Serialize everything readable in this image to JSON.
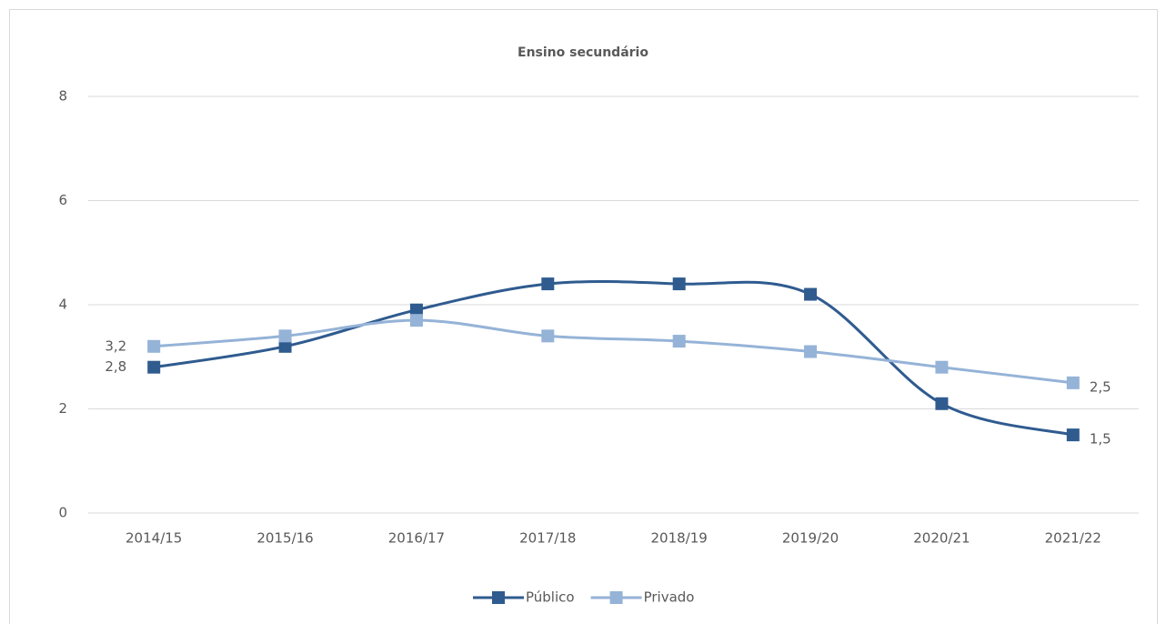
{
  "chart_data": {
    "type": "line",
    "title": "Ensino secundário",
    "categories": [
      "2014/15",
      "2015/16",
      "2016/17",
      "2017/18",
      "2018/19",
      "2019/20",
      "2020/21",
      "2021/22"
    ],
    "series": [
      {
        "name": "Público",
        "color": "#2f5b8f",
        "values": [
          2.8,
          3.2,
          3.9,
          4.4,
          4.4,
          4.2,
          2.1,
          1.5
        ],
        "value_labels": [
          "2,8",
          null,
          null,
          null,
          null,
          null,
          null,
          "1,5"
        ]
      },
      {
        "name": "Privado",
        "color": "#95b3d7",
        "values": [
          3.2,
          3.4,
          3.7,
          3.4,
          3.3,
          3.1,
          2.8,
          2.5
        ],
        "value_labels": [
          "3,2",
          null,
          null,
          null,
          null,
          null,
          null,
          "2,5"
        ]
      }
    ],
    "ylim": [
      0,
      8
    ],
    "yticks": [
      0,
      2,
      4,
      6,
      8
    ],
    "grid": true,
    "smooth": true,
    "legend": "bottom"
  }
}
